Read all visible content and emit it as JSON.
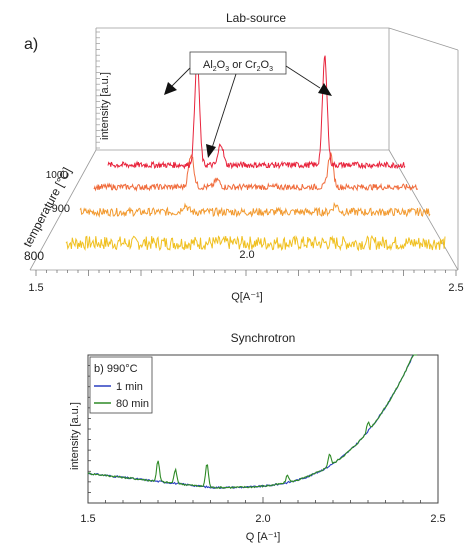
{
  "chart_data": [
    {
      "type": "line",
      "title": "Lab-source",
      "panel_label": "a)",
      "xlabel": "Q[A⁻¹]",
      "ylabel": "intensity [a.u.]",
      "zlabel": "temperature [°C]",
      "xlim": [
        1.5,
        2.5
      ],
      "x_ticks": [
        "1.5",
        "2.0",
        "2.5"
      ],
      "z_ticks": [
        "800",
        "900",
        "1000"
      ],
      "annotation": {
        "prefix": "Al",
        "sub1": "2",
        "mid": "O",
        "sub2": "3",
        "join": " or Cr",
        "sub3": "2",
        "mid2": "O",
        "sub4": "3"
      },
      "series": [
        {
          "color": "#f0c020",
          "offset": 0,
          "peaks": []
        },
        {
          "color": "#f29a30",
          "offset": 1,
          "peaks": [
            {
              "x": 1.8,
              "h": 0.25
            },
            {
              "x": 2.23,
              "h": 0.25
            }
          ]
        },
        {
          "color": "#f06c3c",
          "offset": 2,
          "peaks": [
            {
              "x": 1.8,
              "h": 0.55
            },
            {
              "x": 1.88,
              "h": 0.12
            },
            {
              "x": 2.23,
              "h": 0.55
            }
          ]
        },
        {
          "color": "#e8243c",
          "offset": 3,
          "peaks": [
            {
              "x": 1.8,
              "h": 1.0
            },
            {
              "x": 1.88,
              "h": 0.2
            },
            {
              "x": 2.23,
              "h": 1.0
            }
          ]
        }
      ]
    },
    {
      "type": "line",
      "title": "Synchrotron",
      "panel_label": "b)",
      "xlabel": "Q [A⁻¹]",
      "ylabel": "intensity [a.u.]",
      "xlim": [
        1.5,
        2.5
      ],
      "x_ticks": [
        "1.5",
        "2.0",
        "2.5"
      ],
      "legend_title": "990°C",
      "legend_position": "top-left",
      "series": [
        {
          "name": "1 min",
          "color": "#2a3fc0",
          "peaks": []
        },
        {
          "name": "80 min",
          "color": "#2e8a26",
          "peaks": [
            {
              "x": 1.7,
              "h": 0.14
            },
            {
              "x": 1.75,
              "h": 0.09
            },
            {
              "x": 1.84,
              "h": 0.16
            },
            {
              "x": 2.07,
              "h": 0.05
            },
            {
              "x": 2.19,
              "h": 0.08
            },
            {
              "x": 2.3,
              "h": 0.06
            }
          ]
        }
      ]
    }
  ]
}
